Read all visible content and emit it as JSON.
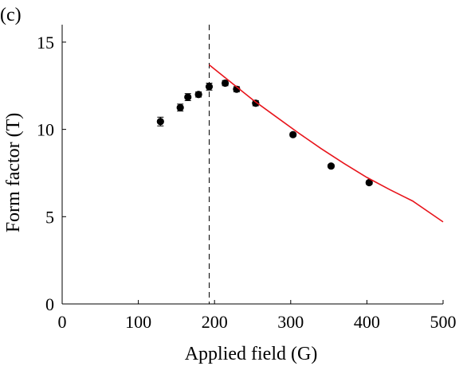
{
  "chart_data": {
    "type": "scatter",
    "panel_label": "(c)",
    "xlabel": "Applied field (G)",
    "ylabel": "Form factor (T)",
    "xlim": [
      0,
      500
    ],
    "ylim": [
      0,
      16
    ],
    "xticks": [
      0,
      100,
      200,
      300,
      400,
      500
    ],
    "yticks": [
      0,
      5,
      10,
      15
    ],
    "grid": false,
    "vline": {
      "x": 193,
      "style": "dashed",
      "color": "#000000"
    },
    "series": [
      {
        "kind": "points_with_errorbars",
        "color": "#000000",
        "points": [
          {
            "x": 129,
            "y": 10.45,
            "err": 0.25
          },
          {
            "x": 155,
            "y": 11.25,
            "err": 0.2
          },
          {
            "x": 165,
            "y": 11.85,
            "err": 0.2
          },
          {
            "x": 179,
            "y": 12.0,
            "err": 0.15
          },
          {
            "x": 193,
            "y": 12.45,
            "err": 0.2
          },
          {
            "x": 214,
            "y": 12.65,
            "err": 0.15
          },
          {
            "x": 229,
            "y": 12.3,
            "err": 0.15
          },
          {
            "x": 254,
            "y": 11.5,
            "err": 0.15
          },
          {
            "x": 303,
            "y": 9.7,
            "err": 0.1
          },
          {
            "x": 353,
            "y": 7.9,
            "err": 0.1
          },
          {
            "x": 403,
            "y": 6.95,
            "err": 0.1
          }
        ]
      },
      {
        "kind": "line",
        "color": "#e8141b",
        "x": [
          193,
          220,
          250,
          280,
          310,
          340,
          370,
          400,
          430,
          460,
          500
        ],
        "y": [
          13.7,
          12.75,
          11.7,
          10.75,
          9.8,
          8.9,
          8.05,
          7.25,
          6.55,
          5.9,
          4.7
        ]
      }
    ]
  }
}
